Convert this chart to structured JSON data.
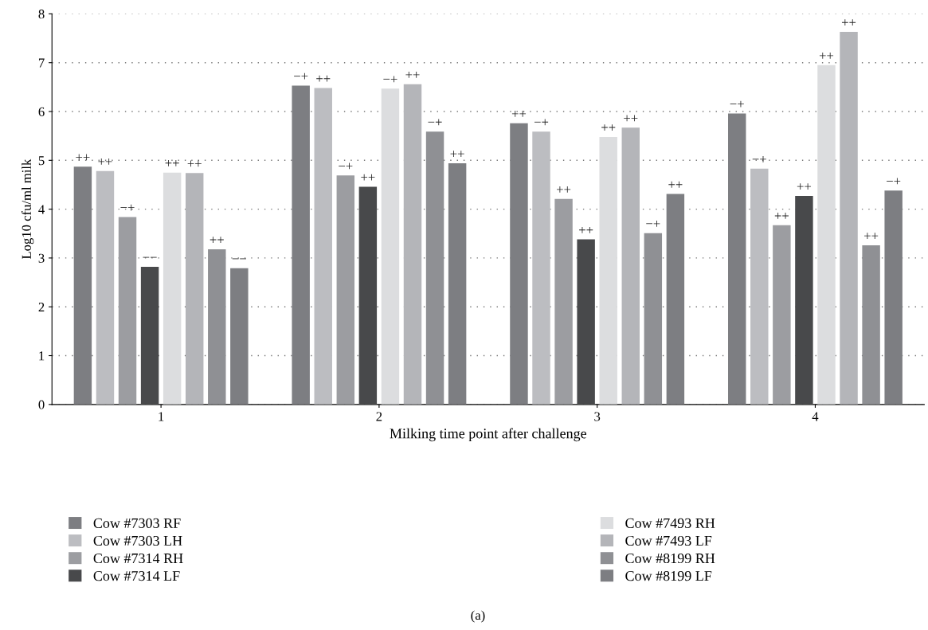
{
  "chart_data": {
    "type": "bar",
    "xlabel": "Milking time point after challenge",
    "ylabel": "Log10 cfu/ml milk",
    "categories": [
      "1",
      "2",
      "3",
      "4"
    ],
    "series": [
      {
        "name": "Cow #7303 RF",
        "color": "#7d7e82",
        "values": [
          4.87,
          6.53,
          5.76,
          5.96
        ],
        "value_labels": [
          "++",
          "−+",
          "++",
          "−+"
        ]
      },
      {
        "name": "Cow #7303 LH",
        "color": "#bcbdc1",
        "values": [
          4.78,
          6.48,
          5.59,
          4.83
        ],
        "value_labels": [
          "++",
          "++",
          "−+",
          "−+"
        ]
      },
      {
        "name": "Cow #7314 RH",
        "color": "#9c9da1",
        "values": [
          3.84,
          4.69,
          4.21,
          3.67
        ],
        "value_labels": [
          "−+",
          "−+",
          "++",
          "++"
        ]
      },
      {
        "name": "Cow #7314 LF",
        "color": "#48494b",
        "values": [
          2.82,
          4.46,
          3.38,
          4.27
        ],
        "value_labels": [
          "−−",
          "++",
          "++",
          "++"
        ]
      },
      {
        "name": "Cow #7493 RH",
        "color": "#dcdddf",
        "values": [
          4.75,
          6.47,
          5.48,
          6.95
        ],
        "value_labels": [
          "++",
          "−+",
          "++",
          "++"
        ]
      },
      {
        "name": "Cow #7493 LF",
        "color": "#b4b5b9",
        "values": [
          4.74,
          6.56,
          5.67,
          7.63
        ],
        "value_labels": [
          "++",
          "++",
          "++",
          "++"
        ]
      },
      {
        "name": "Cow #8199 RH",
        "color": "#8f9094",
        "values": [
          3.18,
          5.59,
          3.51,
          3.26
        ],
        "value_labels": [
          "++",
          "−+",
          "−+",
          "++"
        ]
      },
      {
        "name": "Cow #8199 LF",
        "color": "#7d7e82",
        "values": [
          2.79,
          4.94,
          4.31,
          4.38
        ],
        "value_labels": [
          "−−",
          "++",
          "++",
          "−+"
        ]
      }
    ],
    "ylim": [
      0,
      8
    ],
    "yticks": [
      0,
      1,
      2,
      3,
      4,
      5,
      6,
      7,
      8
    ],
    "grid": "y",
    "legend": "bottom",
    "annotations": [
      "(a)"
    ]
  }
}
